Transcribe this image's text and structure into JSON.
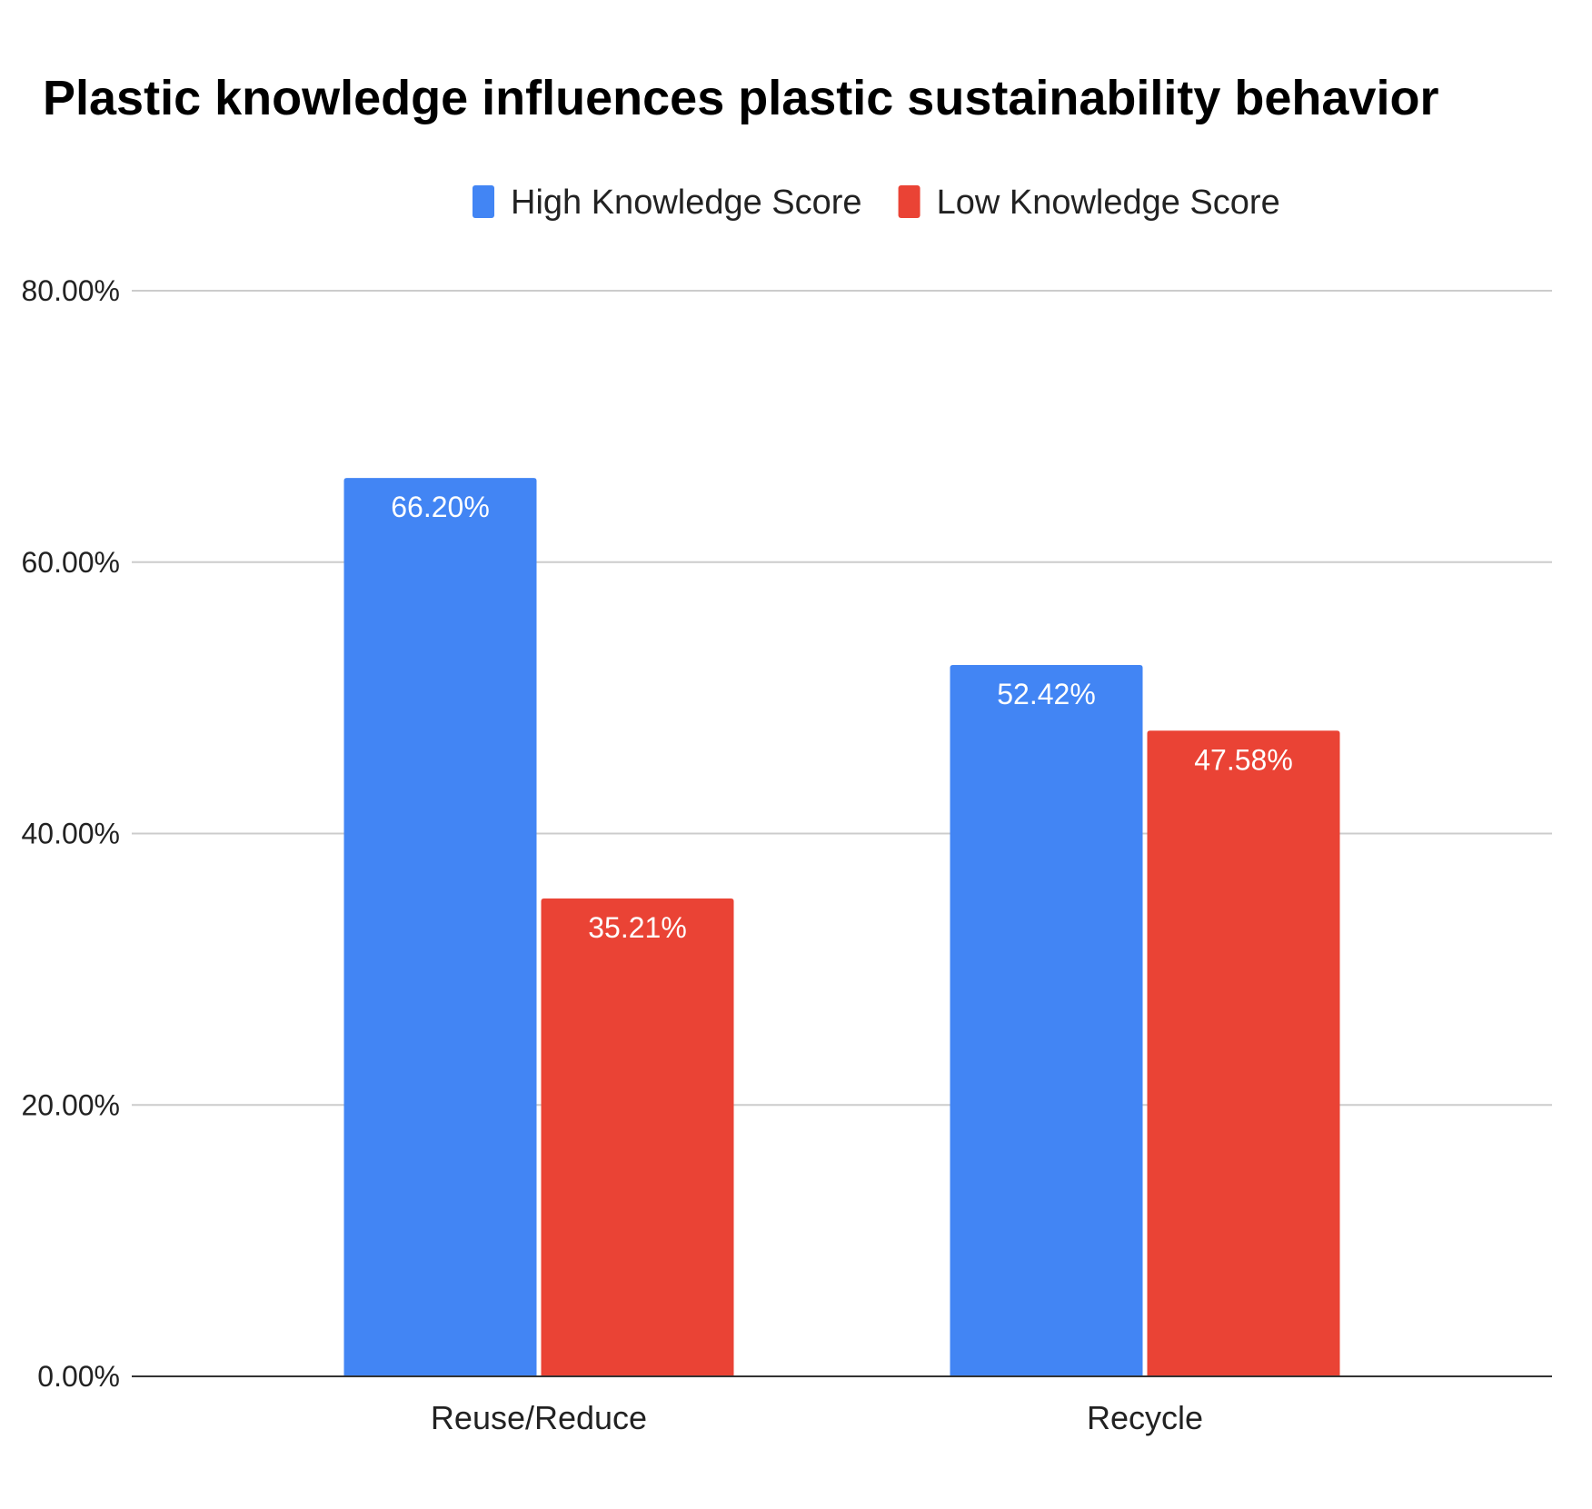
{
  "chart_data": {
    "type": "bar",
    "title": "Plastic knowledge influences plastic sustainability behavior",
    "categories": [
      "Reuse/Reduce",
      "Recycle"
    ],
    "series": [
      {
        "name": "High Knowledge Score",
        "color": "#4285F4",
        "values": [
          66.2,
          52.42
        ],
        "labels": [
          "66.20%",
          "52.42%"
        ]
      },
      {
        "name": "Low Knowledge Score",
        "color": "#EA4335",
        "values": [
          35.21,
          47.58
        ],
        "labels": [
          "35.21%",
          "47.58%"
        ]
      }
    ],
    "yticks": [
      {
        "value": 0,
        "label": "0.00%"
      },
      {
        "value": 20,
        "label": "20.00%"
      },
      {
        "value": 40,
        "label": "40.00%"
      },
      {
        "value": 60,
        "label": "60.00%"
      },
      {
        "value": 80,
        "label": "80.00%"
      }
    ],
    "ylim": [
      0,
      80
    ],
    "grid": true,
    "legend_position": "top-center",
    "xlabel": "",
    "ylabel": ""
  }
}
